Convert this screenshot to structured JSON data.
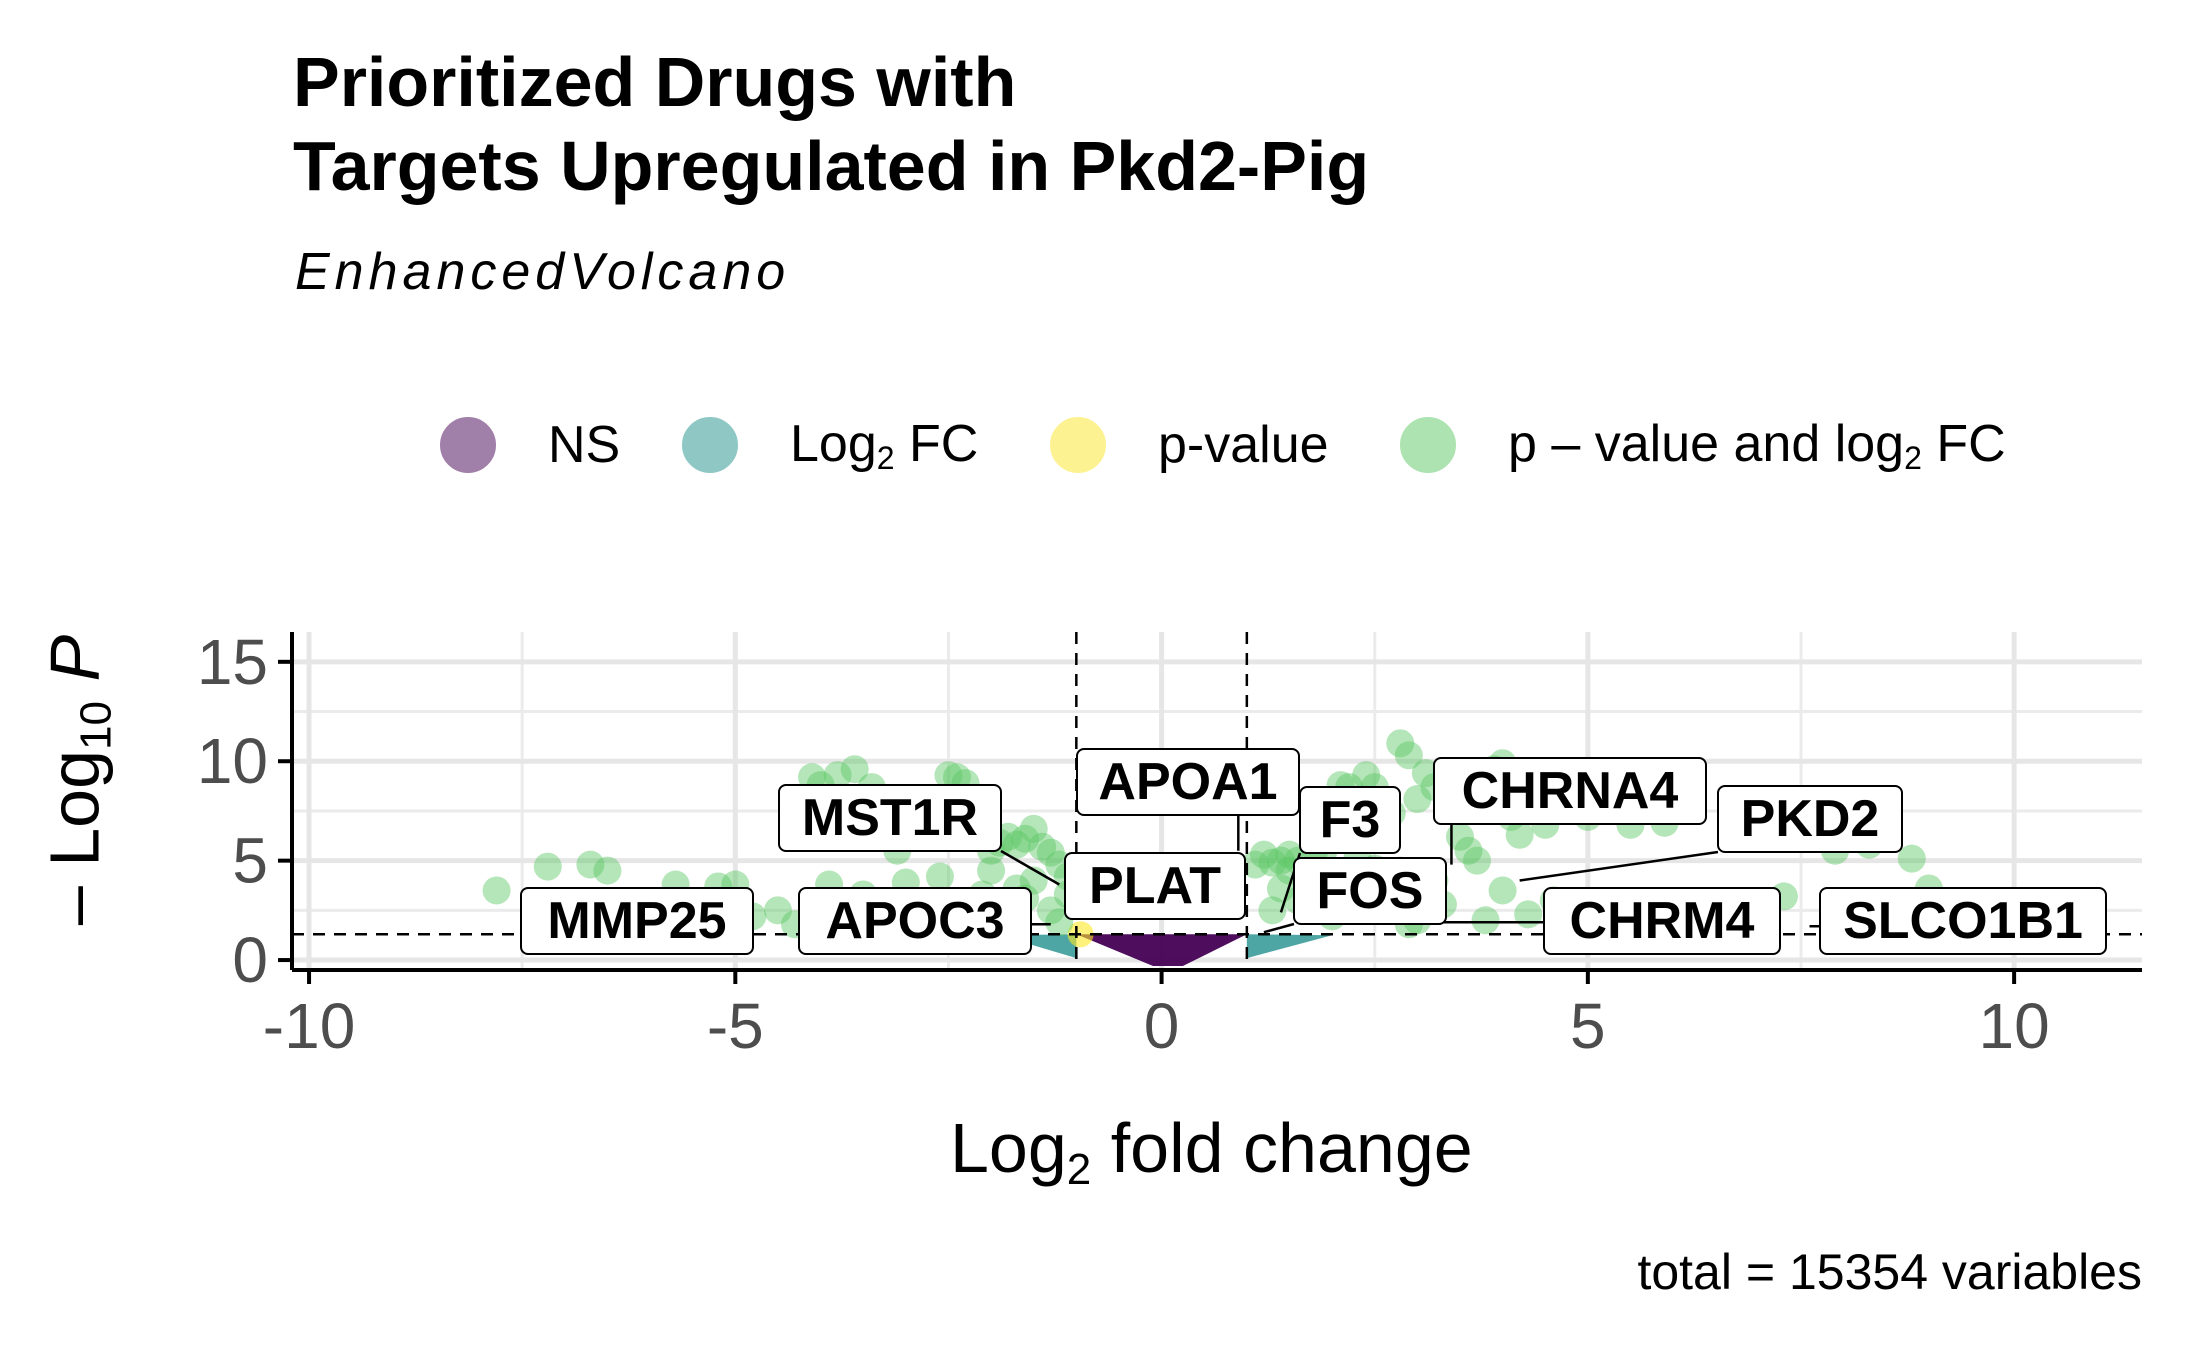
{
  "title_lines": [
    "Prioritized Drugs with",
    "Targets Upregulated in Pkd2-Pig"
  ],
  "subtitle": "EnhancedVolcano",
  "caption": "total = 15354 variables",
  "legend": [
    {
      "label": "NS",
      "sub": "",
      "label_suffix": "",
      "color": "#440154"
    },
    {
      "label": "Log",
      "sub": "2",
      "label_suffix": " FC",
      "color": "#21908C"
    },
    {
      "label": "p-value",
      "sub": "",
      "label_suffix": "",
      "color": "#FDE725"
    },
    {
      "label": "p – value and log",
      "sub": "2",
      "label_suffix": " FC",
      "color": "#5CC863"
    }
  ],
  "axes": {
    "x_title_prefix": "Log",
    "x_title_sub": "2",
    "x_title_suffix": " fold change",
    "y_title_prefix": "– Log",
    "y_title_sub": "10",
    "y_title_suffix": " P"
  },
  "chart_data": {
    "type": "scatter",
    "xlim": [
      -10.2,
      11.5
    ],
    "ylim": [
      -0.5,
      16.5
    ],
    "x_ticks": [
      -10,
      -5,
      0,
      5,
      10
    ],
    "y_ticks": [
      0,
      5,
      10,
      15
    ],
    "x_tick_labels": [
      "-10",
      "-5",
      "0",
      "5",
      "10"
    ],
    "y_tick_labels": [
      "0",
      "5",
      "10",
      "15"
    ],
    "fc_cutoff": 1.0,
    "p_cutoff_log10": 1.3,
    "grid": true,
    "legend_position": "top",
    "categories_colors": {
      "NS": "#440154",
      "FC": "#21908C",
      "P": "#FDE725",
      "FC_P": "#5CC863"
    },
    "points_fc_p": [
      [
        -7.8,
        3.5
      ],
      [
        -7.2,
        4.7
      ],
      [
        -6.7,
        4.8
      ],
      [
        -6.5,
        4.5
      ],
      [
        -5.7,
        3.8
      ],
      [
        -5.2,
        3.7
      ],
      [
        -5.0,
        3.8
      ],
      [
        -4.8,
        2.2
      ],
      [
        -4.5,
        2.5
      ],
      [
        -4.1,
        9.2
      ],
      [
        -4.0,
        8.8
      ],
      [
        -3.8,
        9.3
      ],
      [
        -3.6,
        9.6
      ],
      [
        -3.4,
        8.7
      ],
      [
        -3.3,
        6.3
      ],
      [
        -3.1,
        5.5
      ],
      [
        -2.9,
        7.0
      ],
      [
        -2.7,
        6.4
      ],
      [
        -2.5,
        9.3
      ],
      [
        -2.4,
        9.2
      ],
      [
        -2.3,
        8.9
      ],
      [
        -2.2,
        6.4
      ],
      [
        -2.0,
        5.5
      ],
      [
        -1.9,
        5.9
      ],
      [
        -1.8,
        6.2
      ],
      [
        -1.7,
        5.8
      ],
      [
        -1.6,
        6.1
      ],
      [
        -1.5,
        6.6
      ],
      [
        -1.4,
        5.7
      ],
      [
        -1.3,
        5.4
      ],
      [
        -1.2,
        4.8
      ],
      [
        -1.1,
        4.2
      ],
      [
        -3.9,
        3.8
      ],
      [
        -3.5,
        3.3
      ],
      [
        -3.0,
        3.9
      ],
      [
        -2.6,
        4.2
      ],
      [
        -2.1,
        3.3
      ],
      [
        -1.9,
        2.9
      ],
      [
        -1.6,
        3.1
      ],
      [
        -1.3,
        2.5
      ],
      [
        -4.3,
        1.8
      ],
      [
        -3.7,
        2.0
      ],
      [
        -2.8,
        2.3
      ],
      [
        -2.3,
        1.9
      ],
      [
        -1.8,
        2.0
      ],
      [
        -1.2,
        1.9
      ],
      [
        -1.5,
        4.0
      ],
      [
        -2.0,
        4.5
      ],
      [
        -1.7,
        3.6
      ],
      [
        -1.1,
        3.3
      ],
      [
        1.1,
        4.8
      ],
      [
        1.2,
        5.3
      ],
      [
        1.3,
        4.9
      ],
      [
        1.4,
        5.0
      ],
      [
        1.5,
        5.3
      ],
      [
        1.6,
        5.0
      ],
      [
        1.8,
        5.6
      ],
      [
        1.8,
        7.3
      ],
      [
        1.9,
        5.5
      ],
      [
        2.0,
        6.2
      ],
      [
        2.1,
        8.8
      ],
      [
        2.2,
        8.7
      ],
      [
        2.4,
        9.3
      ],
      [
        2.5,
        8.7
      ],
      [
        2.7,
        7.4
      ],
      [
        2.8,
        10.9
      ],
      [
        2.9,
        10.3
      ],
      [
        3.0,
        8.1
      ],
      [
        3.1,
        9.4
      ],
      [
        3.2,
        8.7
      ],
      [
        3.4,
        7.8
      ],
      [
        3.5,
        6.2
      ],
      [
        3.6,
        5.5
      ],
      [
        3.7,
        5.0
      ],
      [
        3.8,
        8.0
      ],
      [
        3.9,
        9.6
      ],
      [
        4.0,
        9.9
      ],
      [
        4.1,
        7.2
      ],
      [
        4.2,
        6.3
      ],
      [
        4.5,
        6.8
      ],
      [
        5.0,
        7.2
      ],
      [
        5.5,
        6.8
      ],
      [
        5.9,
        6.9
      ],
      [
        7.9,
        5.5
      ],
      [
        8.3,
        5.8
      ],
      [
        8.8,
        5.1
      ],
      [
        9.0,
        3.6
      ],
      [
        7.3,
        3.2
      ],
      [
        4.6,
        3.0
      ],
      [
        4.0,
        3.5
      ],
      [
        3.3,
        2.8
      ],
      [
        2.6,
        3.1
      ],
      [
        2.2,
        2.6
      ],
      [
        1.6,
        3.0
      ],
      [
        1.3,
        2.5
      ],
      [
        4.3,
        2.3
      ],
      [
        4.8,
        2.0
      ],
      [
        5.8,
        2.2
      ],
      [
        6.2,
        1.8
      ],
      [
        3.0,
        2.0
      ],
      [
        2.0,
        2.2
      ],
      [
        2.5,
        4.6
      ],
      [
        1.7,
        4.2
      ],
      [
        3.2,
        4.0
      ],
      [
        2.8,
        4.5
      ],
      [
        1.5,
        4.5
      ],
      [
        2.3,
        5.2
      ],
      [
        1.4,
        3.6
      ],
      [
        2.9,
        1.8
      ],
      [
        3.8,
        2.0
      ]
    ],
    "labels": [
      {
        "text": "MST1R",
        "x": -1.2,
        "y": 3.8
      },
      {
        "text": "APOA1",
        "x": 0.9,
        "y": 5.5
      },
      {
        "text": "PLAT",
        "x": 0.8,
        "y": 2.4
      },
      {
        "text": "F3",
        "x": 1.4,
        "y": 2.4
      },
      {
        "text": "FOS",
        "x": 1.2,
        "y": 1.4
      },
      {
        "text": "CHRNA4",
        "x": 3.4,
        "y": 4.8
      },
      {
        "text": "PKD2",
        "x": 4.2,
        "y": 4.0
      },
      {
        "text": "MMP25",
        "x": -5.2,
        "y": 1.9
      },
      {
        "text": "APOC3",
        "x": -1.3,
        "y": 1.8
      },
      {
        "text": "CHRM4",
        "x": 3.0,
        "y": 1.9
      },
      {
        "text": "SLCO1B1",
        "x": 7.6,
        "y": 1.7
      }
    ]
  }
}
